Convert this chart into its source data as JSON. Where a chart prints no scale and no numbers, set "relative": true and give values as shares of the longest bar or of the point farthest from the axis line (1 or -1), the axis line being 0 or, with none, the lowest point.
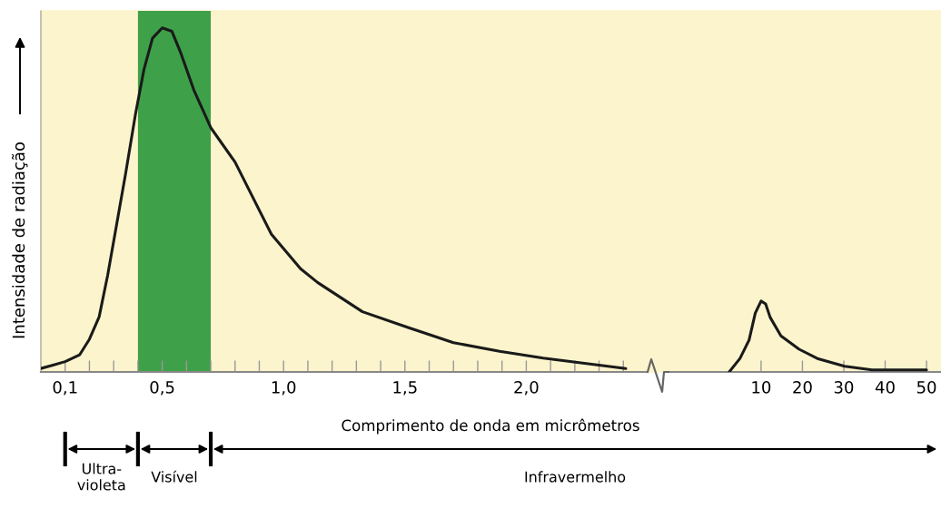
{
  "chart_data": [
    {
      "type": "line",
      "relative": true,
      "xlabel": "Comprimento de onda em micrômetros",
      "ylabel": "Intensidade de radiação",
      "xlim": [
        0,
        2.5
      ],
      "xticks": [
        {
          "value": 0.1,
          "label": "0,1"
        },
        {
          "value": 0.2,
          "label": null
        },
        {
          "value": 0.3,
          "label": null
        },
        {
          "value": 0.4,
          "label": null
        },
        {
          "value": 0.5,
          "label": "0,5"
        },
        {
          "value": 0.6,
          "label": null
        },
        {
          "value": 0.7,
          "label": null
        },
        {
          "value": 0.8,
          "label": null
        },
        {
          "value": 0.9,
          "label": null
        },
        {
          "value": 1.0,
          "label": "1,0"
        },
        {
          "value": 1.1,
          "label": null
        },
        {
          "value": 1.2,
          "label": null
        },
        {
          "value": 1.3,
          "label": null
        },
        {
          "value": 1.4,
          "label": null
        },
        {
          "value": 1.5,
          "label": "1,5"
        },
        {
          "value": 1.6,
          "label": null
        },
        {
          "value": 1.7,
          "label": null
        },
        {
          "value": 1.8,
          "label": null
        },
        {
          "value": 1.9,
          "label": null
        },
        {
          "value": 2.0,
          "label": "2,0"
        },
        {
          "value": 2.1,
          "label": null
        },
        {
          "value": 2.2,
          "label": null
        },
        {
          "value": 2.3,
          "label": null
        },
        {
          "value": 2.4,
          "label": null
        }
      ],
      "bands": [
        {
          "axis": "x",
          "from": 0.4,
          "to": 0.7,
          "color": "#3fa04a"
        }
      ],
      "annotations": [
        "Ultra-\nvioleta",
        "Visível",
        "Infravermelho"
      ],
      "series": [
        {
          "color": "#1a1a1a",
          "x": [
            0.0,
            0.05,
            0.1,
            0.16,
            0.2,
            0.24,
            0.275,
            0.31,
            0.35,
            0.39,
            0.425,
            0.46,
            0.5,
            0.54,
            0.575,
            0.63,
            0.7,
            0.8,
            0.95,
            1.07,
            1.14,
            1.325,
            1.51,
            1.7,
            1.89,
            2.07,
            2.41
          ],
          "values": [
            0.01,
            0.02,
            0.03,
            0.05,
            0.095,
            0.16,
            0.28,
            0.42,
            0.58,
            0.75,
            0.88,
            0.97,
            1.0,
            0.99,
            0.93,
            0.82,
            0.71,
            0.61,
            0.4,
            0.3,
            0.26,
            0.175,
            0.13,
            0.085,
            0.06,
            0.04,
            0.01
          ]
        }
      ]
    },
    {
      "type": "line",
      "relative": true,
      "xlim": [
        -12.6,
        53.5
      ],
      "xticks": [
        10,
        20,
        30,
        40,
        50
      ],
      "series": [
        {
          "color": "#1a1a1a",
          "x": [
            2.3,
            4.9,
            7.1,
            8.6,
            10,
            11.1,
            12.2,
            14.8,
            19.2,
            23.6,
            30.2,
            36.8,
            50
          ],
          "values": [
            0,
            0.19,
            0.45,
            0.83,
            1,
            0.96,
            0.77,
            0.51,
            0.32,
            0.19,
            0.08,
            0.03,
            0.03
          ]
        }
      ]
    }
  ]
}
